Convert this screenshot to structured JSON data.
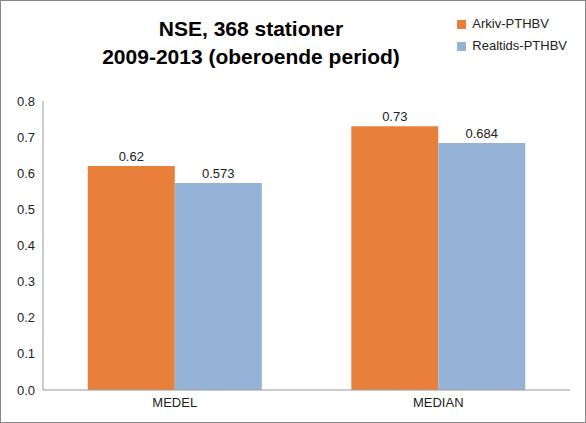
{
  "chart_data": {
    "type": "bar",
    "title": "NSE, 368 stationer\n2009-2013 (oberoende period)",
    "categories": [
      "MEDEL",
      "MEDIAN"
    ],
    "series": [
      {
        "name": "Arkiv-PTHBV",
        "color": "#E8803C",
        "values": [
          0.62,
          0.73
        ]
      },
      {
        "name": "Realtids-PTHBV",
        "color": "#95B3D7",
        "values": [
          0.573,
          0.684
        ]
      }
    ],
    "ylim": [
      0,
      0.8
    ],
    "yticks": [
      {
        "value": 0,
        "label": "0.0"
      },
      0.1,
      0.2,
      0.3,
      0.4,
      0.5,
      0.6,
      0.7,
      0.8
    ],
    "grid": false,
    "legend": "upper right",
    "data_labels": true
  }
}
